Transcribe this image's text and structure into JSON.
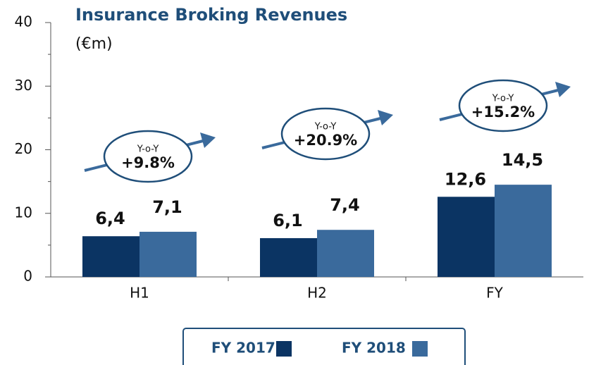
{
  "chart_data": {
    "type": "bar",
    "title": "Insurance Broking Revenues",
    "subtitle": "(€m)",
    "categories": [
      "H1",
      "H2",
      "FY"
    ],
    "series": [
      {
        "name": "FY 2017",
        "color": "#0b3463",
        "values": [
          6.4,
          6.1,
          12.6
        ],
        "value_labels": [
          "6,4",
          "6,1",
          "12,6"
        ]
      },
      {
        "name": "FY 2018",
        "color": "#3a6a9c",
        "values": [
          7.1,
          7.4,
          14.5
        ],
        "value_labels": [
          "7,1",
          "7,4",
          "14,5"
        ]
      }
    ],
    "ylim": [
      0,
      40
    ],
    "yticks": [
      0,
      10,
      20,
      30,
      40
    ],
    "grid": false,
    "annotations": [
      {
        "label": "Y-o-Y",
        "text": "+9.8%"
      },
      {
        "label": "Y-o-Y",
        "text": "+20.9%"
      },
      {
        "label": "Y-o-Y",
        "text": "+15.2%"
      }
    ]
  }
}
